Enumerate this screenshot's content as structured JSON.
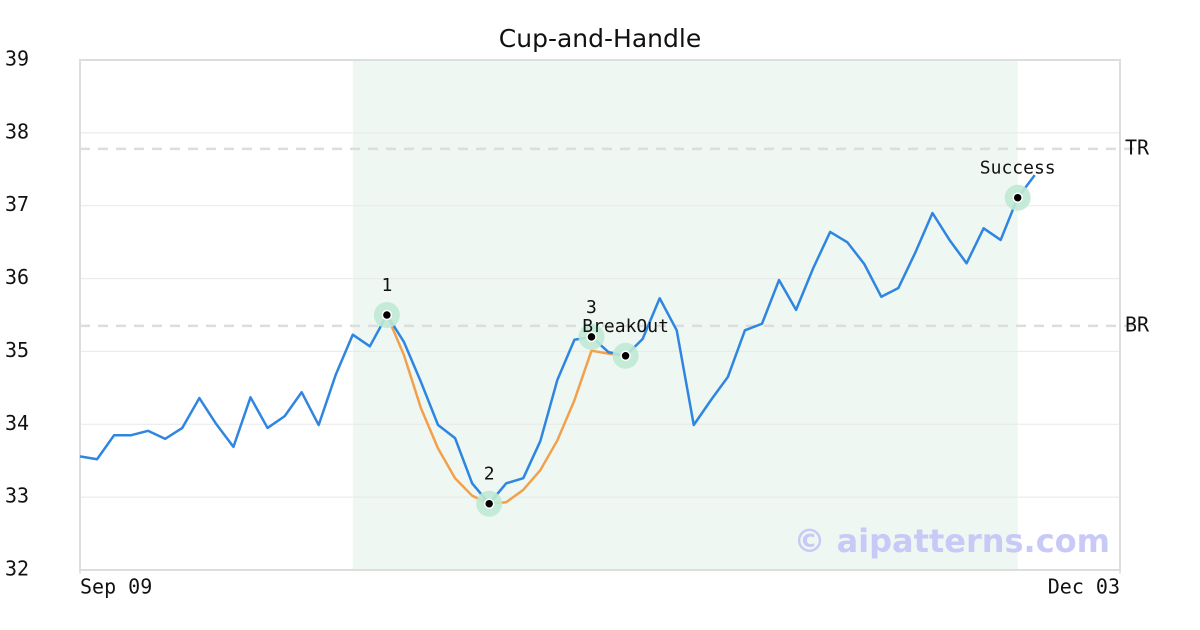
{
  "chart_data": {
    "type": "line",
    "title": "Cup-and-Handle",
    "watermark": "© aipatterns.com",
    "xlim": [
      0,
      61
    ],
    "xticks": [
      {
        "value": 0,
        "label": "Sep 09"
      },
      {
        "value": 61,
        "label": "Dec 03"
      }
    ],
    "ylim": [
      32,
      39
    ],
    "yticks": [
      32,
      33,
      34,
      35,
      36,
      37,
      38,
      39
    ],
    "grid": true,
    "highlight": [
      16,
      55
    ],
    "highlight_color": "#eef7f2",
    "levels": [
      {
        "label": "TR",
        "value": 37.78
      },
      {
        "label": "BR",
        "value": 35.35
      }
    ],
    "series": [
      {
        "color": "#2f86e0",
        "values": [
          33.56,
          33.52,
          33.85,
          33.85,
          33.91,
          33.8,
          33.95,
          34.36,
          34.0,
          33.69,
          34.37,
          33.95,
          34.11,
          34.44,
          33.99,
          34.68,
          35.23,
          35.07,
          35.5,
          35.13,
          34.58,
          33.99,
          33.81,
          33.19,
          32.91,
          33.19,
          33.26,
          33.77,
          34.61,
          35.16,
          35.2,
          34.99,
          34.94,
          35.17,
          35.73,
          35.29,
          33.99,
          34.33,
          34.65,
          35.29,
          35.38,
          35.98,
          35.57,
          36.14,
          36.64,
          36.5,
          36.2,
          35.75,
          35.87,
          36.36,
          36.9,
          36.53,
          36.21,
          36.69,
          36.53,
          37.11,
          37.42
        ]
      },
      {
        "color": "#f2a04c",
        "values": [
          null,
          null,
          null,
          null,
          null,
          null,
          null,
          null,
          null,
          null,
          null,
          null,
          null,
          null,
          null,
          null,
          null,
          null,
          35.5,
          34.95,
          34.22,
          33.67,
          33.26,
          33.02,
          32.91,
          32.93,
          33.1,
          33.37,
          33.78,
          34.33,
          35.01,
          34.97,
          34.94,
          null,
          null,
          null,
          null,
          null,
          null,
          null,
          null,
          null,
          null,
          null,
          null,
          null,
          null,
          null,
          null,
          null,
          null,
          null,
          null,
          null,
          null,
          null,
          null
        ]
      }
    ],
    "points": [
      {
        "label": "1",
        "x": 18,
        "y": 35.5
      },
      {
        "label": "2",
        "x": 24,
        "y": 32.91
      },
      {
        "label": "3",
        "x": 30,
        "y": 35.2
      },
      {
        "label": "BreakOut",
        "x": 32,
        "y": 34.94
      },
      {
        "label": "Success",
        "x": 55,
        "y": 37.11
      }
    ]
  }
}
